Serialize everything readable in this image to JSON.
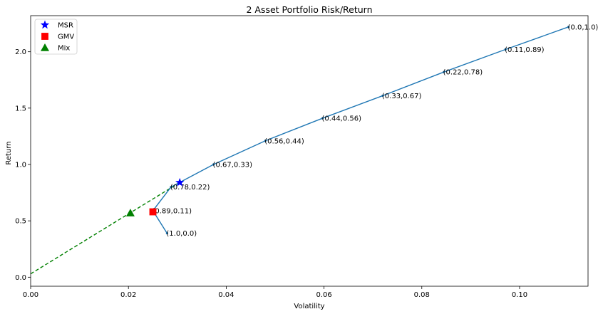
{
  "chart_data": {
    "type": "line",
    "title": "2 Asset Portfolio Risk/Return",
    "xlabel": "Volatility",
    "ylabel": "Return",
    "xlim": [
      0.0,
      0.114
    ],
    "ylim": [
      -0.08,
      2.32
    ],
    "x_ticks": [
      0.0,
      0.02,
      0.04,
      0.06,
      0.08,
      0.1
    ],
    "x_tick_labels": [
      "0.00",
      "0.02",
      "0.04",
      "0.06",
      "0.08",
      "0.10"
    ],
    "y_ticks": [
      0.0,
      0.5,
      1.0,
      1.5,
      2.0
    ],
    "y_tick_labels": [
      "0.0",
      "0.5",
      "1.0",
      "1.5",
      "2.0"
    ],
    "grid": false,
    "legend_position": "top-left",
    "colors": {
      "frontier": "#1f77b4",
      "msr": "#0000ff",
      "gmv": "#ff0000",
      "mix": "#008000",
      "cml": "#008000"
    },
    "series": [
      {
        "values": [
          {
            "x": 0.0279,
            "y": 0.39,
            "label": "(1.0,0.0)"
          },
          {
            "x": 0.025,
            "y": 0.59,
            "label": "(0.89,0.11)"
          },
          {
            "x": 0.0287,
            "y": 0.8,
            "label": "(0.78,0.22)"
          },
          {
            "x": 0.0374,
            "y": 1.0,
            "label": "(0.67,0.33)"
          },
          {
            "x": 0.048,
            "y": 1.21,
            "label": "(0.56,0.44)"
          },
          {
            "x": 0.0597,
            "y": 1.41,
            "label": "(0.44,0.56)"
          },
          {
            "x": 0.072,
            "y": 1.61,
            "label": "(0.33,0.67)"
          },
          {
            "x": 0.0845,
            "y": 1.82,
            "label": "(0.22,0.78)"
          },
          {
            "x": 0.0971,
            "y": 2.02,
            "label": "(0.11,0.89)"
          },
          {
            "x": 0.11,
            "y": 2.22,
            "label": "(0.0,1.0)"
          }
        ]
      },
      {
        "style": "dashed",
        "values": [
          {
            "x": 0.0,
            "y": 0.03
          },
          {
            "x": 0.0305,
            "y": 0.84
          }
        ]
      }
    ],
    "markers": [
      {
        "name": "MSR",
        "shape": "star",
        "x": 0.0305,
        "y": 0.84
      },
      {
        "name": "GMV",
        "shape": "square",
        "x": 0.025,
        "y": 0.58
      },
      {
        "name": "Mix",
        "shape": "triangle",
        "x": 0.0204,
        "y": 0.57
      }
    ]
  }
}
